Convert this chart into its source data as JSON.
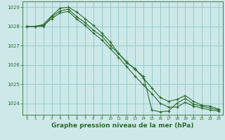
{
  "background_color": "#cce8e8",
  "grid_color": "#99cccc",
  "line_color": "#2d6b2d",
  "marker_color": "#2d6b2d",
  "xlabel": "Graphe pression niveau de la mer (hPa)",
  "xlabel_fontsize": 6.5,
  "xlim": [
    -0.5,
    23.5
  ],
  "ylim": [
    1023.4,
    1029.3
  ],
  "yticks": [
    1024,
    1025,
    1026,
    1027,
    1028,
    1029
  ],
  "xticks": [
    0,
    1,
    2,
    3,
    4,
    5,
    6,
    7,
    8,
    9,
    10,
    11,
    12,
    13,
    14,
    15,
    16,
    17,
    18,
    19,
    20,
    21,
    22,
    23
  ],
  "series": [
    [
      1028.0,
      1028.0,
      1028.0,
      1028.5,
      1028.8,
      1028.9,
      1028.5,
      1028.2,
      1027.8,
      1027.5,
      1027.0,
      1026.6,
      1026.1,
      1025.8,
      1025.3,
      1024.8,
      1024.3,
      1024.1,
      1024.2,
      1024.4,
      1024.1,
      1023.9,
      1023.85,
      1023.7
    ],
    [
      1028.0,
      1028.0,
      1028.05,
      1028.4,
      1028.7,
      1028.78,
      1028.38,
      1028.05,
      1027.65,
      1027.3,
      1026.85,
      1026.4,
      1025.9,
      1025.4,
      1024.95,
      1024.5,
      1024.0,
      1023.8,
      1023.8,
      1024.05,
      1023.85,
      1023.75,
      1023.65,
      1023.6
    ],
    [
      1028.0,
      1028.0,
      1028.1,
      1028.55,
      1028.95,
      1029.0,
      1028.75,
      1028.4,
      1028.05,
      1027.65,
      1027.2,
      1026.6,
      1026.15,
      1025.75,
      1025.4,
      1023.65,
      1023.55,
      1023.6,
      1024.0,
      1024.25,
      1023.95,
      1023.85,
      1023.75,
      1023.65
    ]
  ]
}
